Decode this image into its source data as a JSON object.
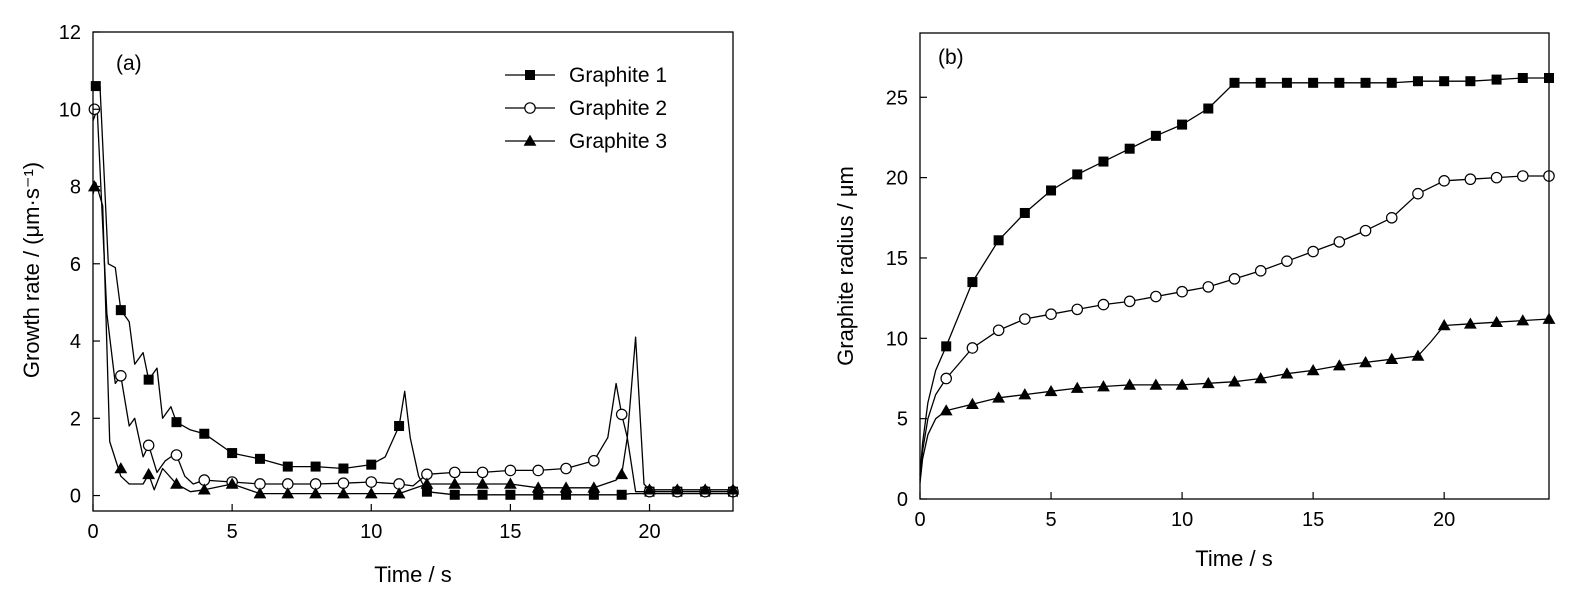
{
  "chart_data": [
    {
      "type": "line",
      "panel_label": "(a)",
      "xlabel": "Time / s",
      "ylabel": "Growth rate / (μm·s⁻¹)",
      "xlim": [
        0,
        23
      ],
      "ylim": [
        -0.4,
        12
      ],
      "xticks": [
        0,
        5,
        10,
        15,
        20
      ],
      "yticks": [
        0,
        2,
        4,
        6,
        8,
        10,
        12
      ],
      "grid": false,
      "legend_position": "top-right",
      "series": [
        {
          "name": "Graphite 1",
          "marker": "filled-square",
          "line_x": [
            0,
            0.1,
            0.25,
            0.55,
            0.8,
            1.0,
            1.3,
            1.5,
            1.8,
            2.0,
            2.3,
            2.5,
            2.8,
            3.0,
            3.5,
            4.0,
            5.0,
            6.0,
            7.0,
            8.0,
            9.0,
            10.0,
            10.5,
            11.0,
            11.2,
            11.4,
            11.7,
            12.0,
            13,
            14,
            15,
            16,
            17,
            18,
            19,
            19.3,
            19.6,
            20,
            21,
            22,
            23
          ],
          "line_y": [
            10.5,
            10.6,
            10.6,
            6.0,
            5.9,
            4.8,
            4.5,
            3.4,
            3.7,
            3.0,
            3.3,
            2.0,
            2.3,
            1.9,
            1.7,
            1.6,
            1.1,
            0.95,
            0.75,
            0.75,
            0.7,
            0.8,
            1.0,
            1.8,
            2.7,
            1.5,
            0.5,
            0.1,
            0.02,
            0.02,
            0.02,
            0.02,
            0.02,
            0.02,
            0.02,
            0.05,
            0.05,
            0.05,
            0.05,
            0.05,
            0.05
          ],
          "marker_x": [
            0.1,
            1,
            2,
            3,
            4,
            5,
            6,
            7,
            8,
            9,
            10,
            11,
            12,
            13,
            14,
            15,
            16,
            17,
            18,
            19,
            20,
            21,
            22,
            23
          ],
          "marker_y": [
            10.6,
            4.8,
            3.0,
            1.9,
            1.6,
            1.1,
            0.95,
            0.75,
            0.75,
            0.7,
            0.8,
            1.8,
            0.1,
            0.02,
            0.02,
            0.02,
            0.02,
            0.02,
            0.02,
            0.02,
            0.1,
            0.1,
            0.1,
            0.1
          ]
        },
        {
          "name": "Graphite 2",
          "marker": "open-circle",
          "line_x": [
            0,
            0.15,
            0.5,
            0.8,
            1.0,
            1.3,
            1.5,
            1.8,
            2.0,
            2.3,
            2.6,
            2.8,
            3.0,
            3.3,
            3.6,
            4.0,
            5,
            6,
            7,
            8,
            9,
            10,
            11,
            11.5,
            12,
            13,
            14,
            15,
            16,
            17,
            18,
            18.5,
            18.8,
            19.0,
            19.2,
            19.5,
            20,
            21,
            22,
            23
          ],
          "line_y": [
            9.7,
            10.0,
            4.7,
            2.9,
            3.1,
            1.8,
            2.0,
            1.0,
            1.3,
            0.6,
            0.9,
            1.0,
            1.05,
            0.5,
            0.3,
            0.4,
            0.35,
            0.3,
            0.3,
            0.3,
            0.32,
            0.35,
            0.3,
            0.25,
            0.55,
            0.6,
            0.6,
            0.65,
            0.65,
            0.7,
            0.9,
            1.5,
            2.9,
            2.1,
            1.5,
            0.1,
            0.1,
            0.1,
            0.1,
            0.1
          ],
          "marker_x": [
            0.05,
            1,
            2,
            3,
            4,
            5,
            6,
            7,
            8,
            9,
            10,
            11,
            12,
            13,
            14,
            15,
            16,
            17,
            18,
            19,
            20,
            21,
            22,
            23
          ],
          "marker_y": [
            10.0,
            3.1,
            1.3,
            1.05,
            0.4,
            0.35,
            0.3,
            0.3,
            0.3,
            0.32,
            0.35,
            0.3,
            0.55,
            0.6,
            0.6,
            0.65,
            0.65,
            0.7,
            0.9,
            2.1,
            0.1,
            0.1,
            0.1,
            0.1
          ]
        },
        {
          "name": "Graphite 3",
          "marker": "filled-triangle",
          "line_x": [
            0,
            0.1,
            0.35,
            0.6,
            1.0,
            1.3,
            1.5,
            1.8,
            2.0,
            2.2,
            2.5,
            3.0,
            3.5,
            4.0,
            5.0,
            6.0,
            7,
            8,
            9,
            10,
            11,
            12,
            13,
            14,
            15,
            16,
            17,
            18,
            18.8,
            19.0,
            19.2,
            19.5,
            19.8,
            20,
            21,
            22,
            23
          ],
          "line_y": [
            7.8,
            8.1,
            7.5,
            1.4,
            0.5,
            0.3,
            0.3,
            0.3,
            0.55,
            0.15,
            0.7,
            0.3,
            0.1,
            0.15,
            0.3,
            0.05,
            0.05,
            0.05,
            0.05,
            0.05,
            0.05,
            0.3,
            0.3,
            0.3,
            0.3,
            0.2,
            0.2,
            0.2,
            0.4,
            0.55,
            1.5,
            4.1,
            0.3,
            0.15,
            0.15,
            0.15,
            0.15
          ],
          "marker_x": [
            0.05,
            1,
            2,
            3,
            4,
            5,
            6,
            7,
            8,
            9,
            10,
            11,
            12,
            13,
            14,
            15,
            16,
            17,
            18,
            19,
            20,
            21,
            22,
            23
          ],
          "marker_y": [
            8.0,
            0.7,
            0.55,
            0.3,
            0.15,
            0.3,
            0.05,
            0.05,
            0.05,
            0.05,
            0.05,
            0.05,
            0.3,
            0.3,
            0.3,
            0.3,
            0.2,
            0.2,
            0.2,
            0.55,
            0.15,
            0.15,
            0.15,
            0.15
          ]
        }
      ]
    },
    {
      "type": "line",
      "panel_label": "(b)",
      "xlabel": "Time / s",
      "ylabel": "Graphite radius / μm",
      "xlim": [
        0,
        24
      ],
      "ylim": [
        0,
        29
      ],
      "xticks": [
        0,
        5,
        10,
        15,
        20
      ],
      "yticks": [
        0,
        5,
        10,
        15,
        20,
        25
      ],
      "grid": false,
      "series": [
        {
          "name": "Graphite 1",
          "marker": "filled-square",
          "line_x": [
            0,
            0.1,
            0.3,
            0.6,
            1,
            2,
            3,
            4,
            5,
            6,
            7,
            8,
            9,
            10,
            11,
            12,
            13,
            14,
            15,
            16,
            17,
            18,
            19,
            20,
            21,
            22,
            23,
            24
          ],
          "line_y": [
            1.5,
            3.5,
            6.0,
            8.0,
            9.5,
            13.5,
            16.1,
            17.8,
            19.2,
            20.2,
            21.0,
            21.8,
            22.6,
            23.3,
            24.3,
            25.9,
            25.9,
            25.9,
            25.9,
            25.9,
            25.9,
            25.9,
            26.0,
            26.0,
            26.0,
            26.1,
            26.2,
            26.2
          ],
          "marker_x": [
            1,
            2,
            3,
            4,
            5,
            6,
            7,
            8,
            9,
            10,
            11,
            12,
            13,
            14,
            15,
            16,
            17,
            18,
            19,
            20,
            21,
            22,
            23,
            24
          ],
          "marker_y": [
            9.5,
            13.5,
            16.1,
            17.8,
            19.2,
            20.2,
            21.0,
            21.8,
            22.6,
            23.3,
            24.3,
            25.9,
            25.9,
            25.9,
            25.9,
            25.9,
            25.9,
            25.9,
            26.0,
            26.0,
            26.0,
            26.1,
            26.2,
            26.2
          ]
        },
        {
          "name": "Graphite 2",
          "marker": "open-circle",
          "line_x": [
            0,
            0.1,
            0.3,
            0.6,
            1,
            2,
            3,
            4,
            5,
            6,
            7,
            8,
            9,
            10,
            11,
            12,
            13,
            14,
            15,
            16,
            17,
            18,
            19,
            20,
            21,
            22,
            23,
            24
          ],
          "line_y": [
            1.2,
            3.0,
            5.0,
            6.5,
            7.5,
            9.4,
            10.5,
            11.2,
            11.5,
            11.8,
            12.1,
            12.3,
            12.6,
            12.9,
            13.2,
            13.7,
            14.2,
            14.8,
            15.4,
            16.0,
            16.7,
            17.5,
            19.0,
            19.8,
            19.9,
            20.0,
            20.1,
            20.1
          ],
          "marker_x": [
            1,
            2,
            3,
            4,
            5,
            6,
            7,
            8,
            9,
            10,
            11,
            12,
            13,
            14,
            15,
            16,
            17,
            18,
            19,
            20,
            21,
            22,
            23,
            24
          ],
          "marker_y": [
            7.5,
            9.4,
            10.5,
            11.2,
            11.5,
            11.8,
            12.1,
            12.3,
            12.6,
            12.9,
            13.2,
            13.7,
            14.2,
            14.8,
            15.4,
            16.0,
            16.7,
            17.5,
            19.0,
            19.8,
            19.9,
            20.0,
            20.1,
            20.1
          ]
        },
        {
          "name": "Graphite 3",
          "marker": "filled-triangle",
          "line_x": [
            0,
            0.1,
            0.3,
            0.6,
            1,
            2,
            3,
            4,
            5,
            6,
            7,
            8,
            9,
            10,
            11,
            12,
            13,
            14,
            15,
            16,
            17,
            18,
            19,
            19.5,
            20,
            21,
            22,
            23,
            24
          ],
          "line_y": [
            1.0,
            2.5,
            4.0,
            5.0,
            5.5,
            5.9,
            6.3,
            6.5,
            6.7,
            6.9,
            7.0,
            7.1,
            7.1,
            7.1,
            7.2,
            7.3,
            7.5,
            7.8,
            8.0,
            8.3,
            8.5,
            8.7,
            8.9,
            9.8,
            10.8,
            10.9,
            11.0,
            11.1,
            11.2
          ],
          "marker_x": [
            1,
            2,
            3,
            4,
            5,
            6,
            7,
            8,
            9,
            10,
            11,
            12,
            13,
            14,
            15,
            16,
            17,
            18,
            19,
            20,
            21,
            22,
            23,
            24
          ],
          "marker_y": [
            5.5,
            5.9,
            6.3,
            6.5,
            6.7,
            6.9,
            7.0,
            7.1,
            7.1,
            7.1,
            7.2,
            7.3,
            7.5,
            7.8,
            8.0,
            8.3,
            8.5,
            8.7,
            8.9,
            10.8,
            10.9,
            11.0,
            11.1,
            11.2
          ]
        }
      ]
    }
  ],
  "style": {
    "line_color": "#000000",
    "background": "#ffffff"
  }
}
